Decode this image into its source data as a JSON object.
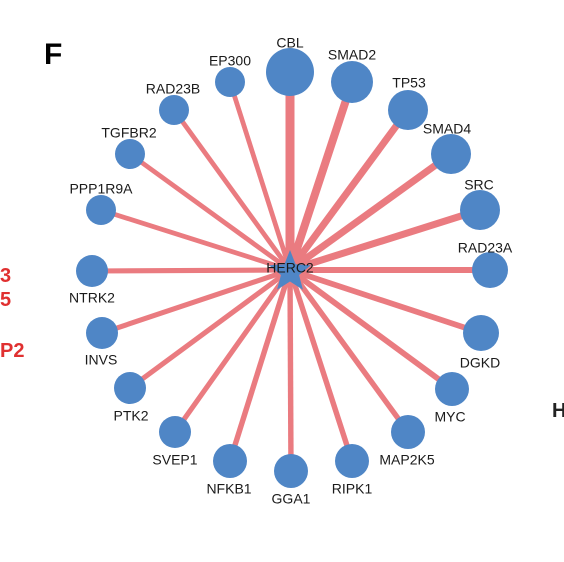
{
  "panel_label": "F",
  "hub": {
    "label": "HERC2",
    "shape": "star",
    "color": "#4f86c6"
  },
  "node_color": "#4f86c6",
  "edge_color": "#ea7b80",
  "nodes": [
    {
      "label": "CBL",
      "weight": 1.0
    },
    {
      "label": "SMAD2",
      "weight": 0.85
    },
    {
      "label": "TP53",
      "weight": 0.7
    },
    {
      "label": "SMAD4",
      "weight": 0.7
    },
    {
      "label": "SRC",
      "weight": 0.7
    },
    {
      "label": "RAD23A",
      "weight": 0.55
    },
    {
      "label": "DGKD",
      "weight": 0.5
    },
    {
      "label": "MYC",
      "weight": 0.5
    },
    {
      "label": "MAP2K5",
      "weight": 0.45
    },
    {
      "label": "RIPK1",
      "weight": 0.45
    },
    {
      "label": "GGA1",
      "weight": 0.45
    },
    {
      "label": "NFKB1",
      "weight": 0.45
    },
    {
      "label": "SVEP1",
      "weight": 0.4
    },
    {
      "label": "PTK2",
      "weight": 0.4
    },
    {
      "label": "INVS",
      "weight": 0.4
    },
    {
      "label": "NTRK2",
      "weight": 0.4
    },
    {
      "label": "PPP1R9A",
      "weight": 0.35
    },
    {
      "label": "TGFBR2",
      "weight": 0.35
    },
    {
      "label": "RAD23B",
      "weight": 0.35
    },
    {
      "label": "EP300",
      "weight": 0.35
    }
  ],
  "clipped_left_text": [
    "3",
    "5",
    "P2",
    "",
    ""
  ],
  "clipped_right_text": "H"
}
